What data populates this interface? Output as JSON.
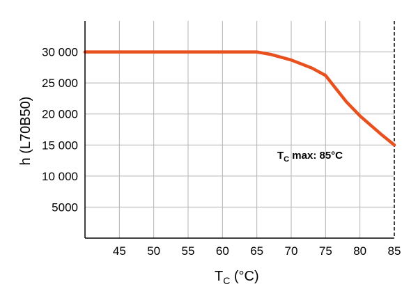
{
  "chart_data": {
    "type": "line",
    "xlabel_main": "T",
    "xlabel_sub": "C",
    "xlabel_unit": " (°C)",
    "ylabel": "h (L70B50)",
    "xlim": [
      40,
      85
    ],
    "ylim": [
      0,
      35000
    ],
    "x_ticks": [
      45,
      50,
      55,
      60,
      65,
      70,
      75,
      80,
      85
    ],
    "y_ticks": [
      5000,
      10000,
      15000,
      20000,
      25000,
      30000
    ],
    "y_tick_labels": [
      "5000",
      "10 000",
      "15 000",
      "20 000",
      "25 000",
      "30 000"
    ],
    "grid": true,
    "series": [
      {
        "color": "#e8501e",
        "x": [
          40,
          65,
          67,
          70,
          73,
          75,
          78,
          80,
          83,
          85
        ],
        "y": [
          30000,
          30000,
          29600,
          28700,
          27400,
          26200,
          22000,
          19700,
          16800,
          15000
        ]
      }
    ],
    "vline": {
      "x": 85,
      "style": "dashed",
      "label_main": "T",
      "label_sub": "C",
      "label_rest": " max: 85°C"
    }
  }
}
